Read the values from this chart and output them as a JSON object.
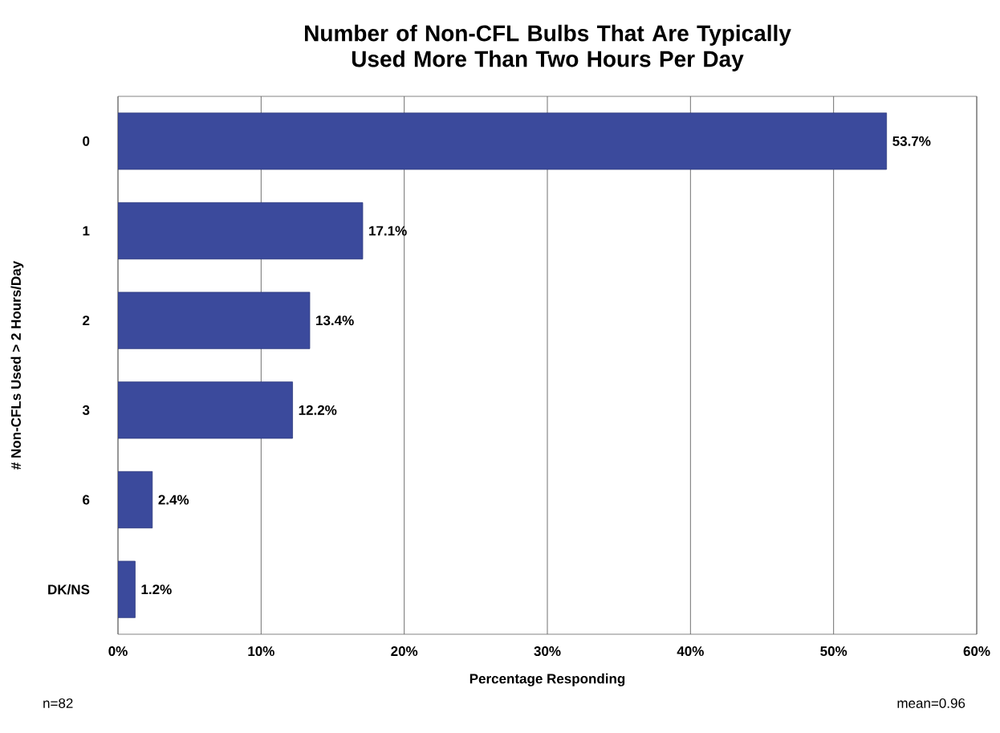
{
  "chart_data": {
    "type": "bar",
    "orientation": "horizontal",
    "title": "Number of Non-CFL Bulbs That Are Typically Used More Than Two Hours Per Day",
    "xlabel": "Percentage Responding",
    "ylabel": "# Non-CFLs Used > 2 Hours/Day",
    "categories": [
      "0",
      "1",
      "2",
      "3",
      "6",
      "DK/NS"
    ],
    "values": [
      53.7,
      17.1,
      13.4,
      12.2,
      2.4,
      1.2
    ],
    "value_labels": [
      "53.7%",
      "17.1%",
      "13.4%",
      "12.2%",
      "2.4%",
      "1.2%"
    ],
    "color": "#3b4a9c",
    "xlim": [
      0,
      60
    ],
    "xticks": [
      {
        "value": 0,
        "label": "0%"
      },
      {
        "value": 10,
        "label": "10%"
      },
      {
        "value": 20,
        "label": "20%"
      },
      {
        "value": 30,
        "label": "30%"
      },
      {
        "value": 40,
        "label": "40%"
      },
      {
        "value": 50,
        "label": "50%"
      },
      {
        "value": 60,
        "label": "60%"
      }
    ],
    "grid": "x",
    "annotations": [
      "n=82",
      "mean=0.96"
    ]
  }
}
